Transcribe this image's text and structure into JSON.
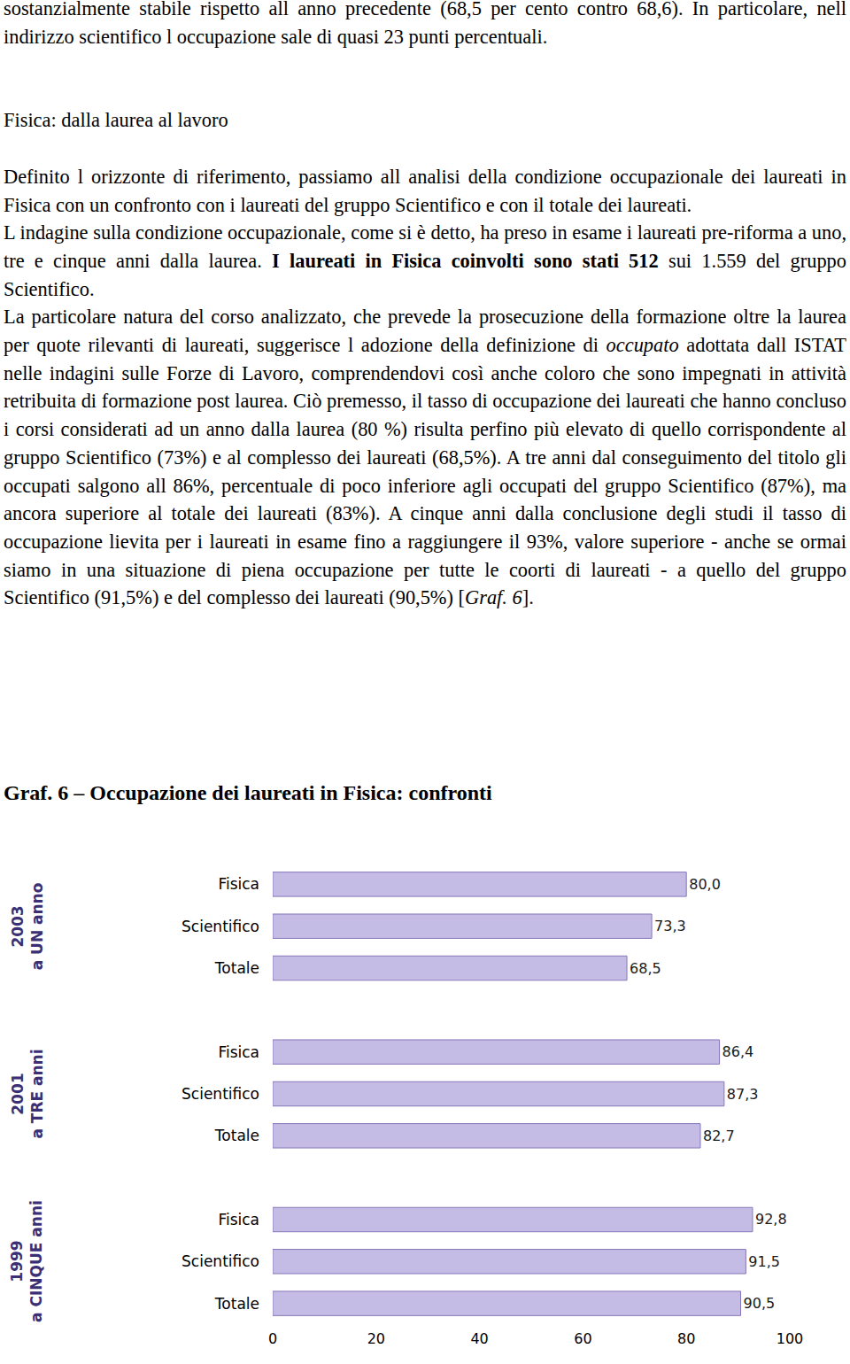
{
  "document": {
    "intro": [
      {
        "text": "sostanzialmente stabile rispetto all anno precedente (68,5 per cento contro 68,6). In particolare, nell indirizzo scientifico l occupazione sale di quasi 23 punti percentuali."
      }
    ],
    "heading": "Fisica: dalla laurea al lavoro",
    "paragraphs": [
      [
        {
          "text": "Definito l orizzonte di riferimento, passiamo all analisi della condizione occupazionale dei laureati in Fisica con un confronto con i laureati del gruppo Scientifico e con il totale dei laureati."
        }
      ],
      [
        {
          "text": "L indagine sulla condizione occupazionale, come si è detto, ha preso in esame i laureati pre-riforma a uno, tre e cinque anni dalla laurea. "
        },
        {
          "text": "I laureati in Fisica coinvolti sono stati 512",
          "style": "bold"
        },
        {
          "text": " sui 1.559 del gruppo Scientifico."
        }
      ],
      [
        {
          "text": "La particolare natura del corso analizzato, che prevede la prosecuzione della formazione oltre la laurea per quote rilevanti di laureati, suggerisce l adozione della definizione di "
        },
        {
          "text": "occupato",
          "style": "italic"
        },
        {
          "text": " adottata dall ISTAT nelle indagini sulle Forze di Lavoro, comprendendovi così anche coloro che sono impegnati in attività retribuita di formazione post laurea. Ciò premesso, il tasso di occupazione dei laureati che hanno concluso i corsi considerati ad un anno dalla laurea (80 %) risulta perfino più elevato di quello corrispondente al gruppo Scientifico (73%) e al complesso dei laureati (68,5%). A tre anni dal conseguimento del titolo gli occupati salgono all 86%, percentuale di poco inferiore agli occupati del gruppo Scientifico (87%), ma ancora superiore al totale dei laureati (83%). A cinque anni dalla conclusione degli studi il tasso di occupazione lievita per i laureati in esame fino a raggiungere il 93%, valore superiore - anche se ormai siamo in una situazione di piena occupazione per tutte le coorti di laureati -  a quello del gruppo Scientifico (91,5%) e del complesso dei laureati (90,5%) ["
        },
        {
          "text": "Graf. 6",
          "style": "italic"
        },
        {
          "text": "]."
        }
      ]
    ]
  },
  "chart_data": {
    "type": "bar",
    "title": "Graf. 6 – Occupazione dei laureati in Fisica: confronti",
    "orientation": "horizontal",
    "color": "#c5bce6",
    "data_labels": true,
    "grid": false,
    "xlim": [
      0,
      100
    ],
    "xticks": [
      0,
      20,
      40,
      60,
      80,
      100
    ],
    "groups": [
      {
        "label": [
          "2003",
          "a UN anno"
        ],
        "categories": [
          "Fisica",
          "Scientifico",
          "Totale"
        ],
        "values": [
          80.0,
          73.3,
          68.5
        ],
        "value_labels": [
          "80,0",
          "73,3",
          "68,5"
        ]
      },
      {
        "label": [
          "2001",
          "a TRE anni"
        ],
        "categories": [
          "Fisica",
          "Scientifico",
          "Totale"
        ],
        "values": [
          86.4,
          87.3,
          82.7
        ],
        "value_labels": [
          "86,4",
          "87,3",
          "82,7"
        ]
      },
      {
        "label": [
          "1999",
          "a CINQUE anni"
        ],
        "categories": [
          "Fisica",
          "Scientifico",
          "Totale"
        ],
        "values": [
          92.8,
          91.5,
          90.5
        ],
        "value_labels": [
          "92,8",
          "91,5",
          "90,5"
        ]
      }
    ]
  }
}
